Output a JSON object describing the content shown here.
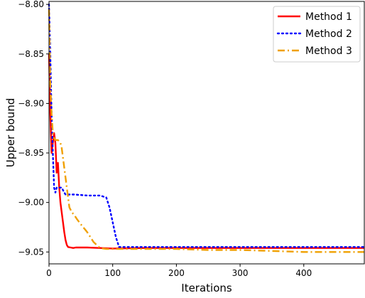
{
  "chart_data": {
    "type": "line",
    "title": "",
    "xlabel": "Iterations",
    "ylabel": "Upper bound",
    "xlim": [
      0,
      495
    ],
    "ylim": [
      -9.062,
      -8.797
    ],
    "xticks": [
      0,
      100,
      200,
      300,
      400
    ],
    "xtick_labels": [
      "0",
      "100",
      "200",
      "300",
      "400"
    ],
    "yticks": [
      -8.8,
      -8.85,
      -8.9,
      -8.95,
      -9.0,
      -9.05
    ],
    "ytick_labels": [
      "−8.80",
      "−8.85",
      "−8.90",
      "−8.95",
      "−9.00",
      "−9.05"
    ],
    "grid": false,
    "legend_position": "top-right",
    "series": [
      {
        "name": "Method 1",
        "color": "#ff0000",
        "style": "solid",
        "x": [
          0,
          2,
          4,
          6,
          8,
          10,
          12,
          14,
          16,
          18,
          20,
          22,
          24,
          26,
          28,
          30,
          34,
          38,
          42,
          50,
          60,
          80,
          100,
          150,
          200,
          300,
          400,
          495
        ],
        "y": [
          -8.85,
          -8.91,
          -8.95,
          -8.94,
          -8.93,
          -8.94,
          -8.97,
          -8.96,
          -8.985,
          -9.0,
          -9.01,
          -9.02,
          -9.03,
          -9.038,
          -9.043,
          -9.045,
          -9.0455,
          -9.046,
          -9.0455,
          -9.0455,
          -9.0455,
          -9.046,
          -9.0465,
          -9.046,
          -9.046,
          -9.046,
          -9.046,
          -9.046
        ]
      },
      {
        "name": "Method 2",
        "color": "#0000ff",
        "style": "dotted",
        "x": [
          0,
          2,
          4,
          6,
          8,
          10,
          12,
          14,
          16,
          20,
          24,
          26,
          30,
          40,
          60,
          80,
          90,
          95,
          100,
          105,
          110,
          115,
          120,
          130,
          150,
          200,
          300,
          400,
          495
        ],
        "y": [
          -8.8,
          -8.85,
          -8.91,
          -8.95,
          -8.985,
          -8.99,
          -8.985,
          -8.985,
          -8.985,
          -8.985,
          -8.99,
          -8.992,
          -8.992,
          -8.992,
          -8.993,
          -8.993,
          -8.995,
          -9.005,
          -9.02,
          -9.035,
          -9.045,
          -9.045,
          -9.045,
          -9.045,
          -9.045,
          -9.045,
          -9.045,
          -9.045,
          -9.045
        ]
      },
      {
        "name": "Method 3",
        "color": "#f0a000",
        "style": "dashdot",
        "x": [
          0,
          2,
          4,
          6,
          8,
          10,
          14,
          18,
          20,
          22,
          24,
          28,
          32,
          36,
          40,
          44,
          50,
          60,
          70,
          80,
          90,
          100,
          150,
          200,
          250,
          300,
          350,
          400,
          450,
          495
        ],
        "y": [
          -8.805,
          -8.88,
          -8.91,
          -8.93,
          -8.935,
          -8.937,
          -8.937,
          -8.94,
          -8.945,
          -8.955,
          -8.965,
          -8.985,
          -9.005,
          -9.01,
          -9.013,
          -9.017,
          -9.022,
          -9.03,
          -9.04,
          -9.046,
          -9.047,
          -9.047,
          -9.047,
          -9.047,
          -9.048,
          -9.048,
          -9.049,
          -9.05,
          -9.05,
          -9.05
        ]
      }
    ]
  }
}
